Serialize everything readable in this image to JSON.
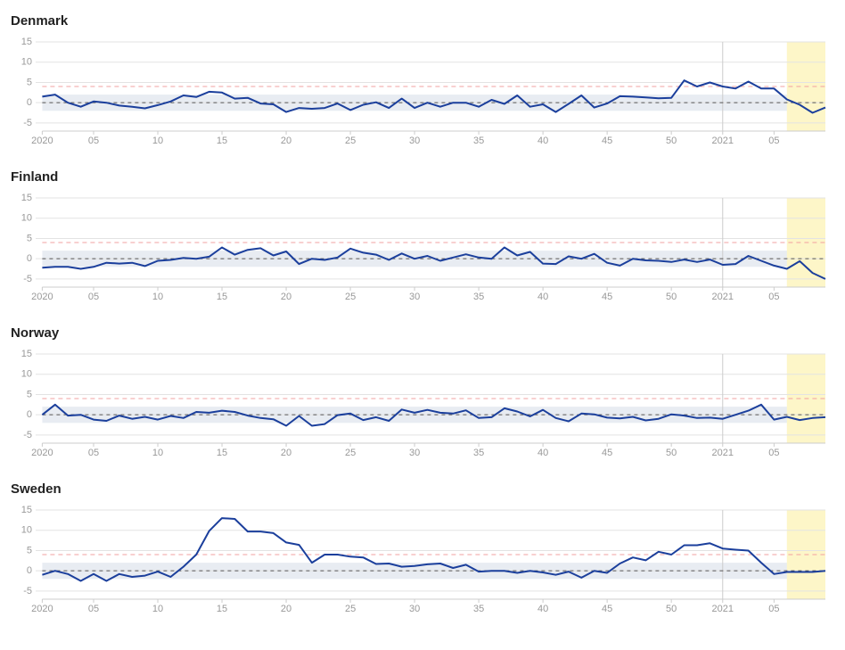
{
  "chart_data": [
    {
      "type": "line",
      "title": "Denmark",
      "categories": [
        "2020",
        null,
        null,
        null,
        "05",
        null,
        null,
        null,
        null,
        "10",
        null,
        null,
        null,
        null,
        "15",
        null,
        null,
        null,
        null,
        "20",
        null,
        null,
        null,
        null,
        "25",
        null,
        null,
        null,
        null,
        "30",
        null,
        null,
        null,
        null,
        "35",
        null,
        null,
        null,
        null,
        "40",
        null,
        null,
        null,
        null,
        "45",
        null,
        null,
        null,
        null,
        "50",
        null,
        null,
        null,
        "2021",
        null,
        null,
        null,
        "05",
        null,
        null,
        null,
        null
      ],
      "series": [
        {
          "color": "#1b3f9c",
          "values": [
            1.5,
            2,
            0,
            -1,
            0.3,
            0,
            -0.7,
            -1,
            -1.4,
            -0.6,
            0.3,
            1.8,
            1.4,
            2.7,
            2.5,
            1,
            1.2,
            -0.2,
            -0.4,
            -2.3,
            -1.3,
            -1.5,
            -1.3,
            -0.2,
            -1.8,
            -0.5,
            0.1,
            -1.3,
            1,
            -1.3,
            0,
            -1,
            0,
            0,
            -1,
            0.7,
            -0.3,
            1.8,
            -1,
            -0.4,
            -2.3,
            -0.3,
            1.8,
            -1.2,
            -0.2,
            1.6,
            1.5,
            1.3,
            1.1,
            1.2,
            5.5,
            4,
            5,
            4,
            3.5,
            5.2,
            3.5,
            3.5,
            0.8,
            -0.5,
            -2.5,
            -1.2
          ]
        }
      ],
      "ylim": [
        -7,
        15
      ],
      "yticks": [
        15,
        10,
        5,
        0,
        -5
      ],
      "grid": true,
      "reference_band": [
        -2,
        2
      ],
      "threshold": 4,
      "baseline": 0,
      "year_divider": 53,
      "highlight": [
        58,
        61
      ]
    },
    {
      "type": "line",
      "title": "Finland",
      "categories": [
        "2020",
        null,
        null,
        null,
        "05",
        null,
        null,
        null,
        null,
        "10",
        null,
        null,
        null,
        null,
        "15",
        null,
        null,
        null,
        null,
        "20",
        null,
        null,
        null,
        null,
        "25",
        null,
        null,
        null,
        null,
        "30",
        null,
        null,
        null,
        null,
        "35",
        null,
        null,
        null,
        null,
        "40",
        null,
        null,
        null,
        null,
        "45",
        null,
        null,
        null,
        null,
        "50",
        null,
        null,
        null,
        "2021",
        null,
        null,
        null,
        "05",
        null,
        null,
        null,
        null
      ],
      "series": [
        {
          "color": "#1b3f9c",
          "values": [
            -2.2,
            -2,
            -2,
            -2.5,
            -2,
            -1,
            -1.2,
            -1,
            -1.8,
            -0.5,
            -0.3,
            0.2,
            0,
            0.5,
            2.8,
            1,
            2.2,
            2.6,
            0.8,
            1.8,
            -1.3,
            0,
            -0.3,
            0.3,
            2.5,
            1.5,
            1,
            -0.3,
            1.3,
            0,
            0.7,
            -0.5,
            0.3,
            1.1,
            0.3,
            0,
            2.8,
            0.8,
            1.7,
            -1.2,
            -1.3,
            0.6,
            0,
            1.2,
            -1,
            -1.7,
            0,
            -0.4,
            -0.5,
            -0.8,
            -0.2,
            -0.8,
            -0.2,
            -1.5,
            -1.3,
            0.7,
            -0.5,
            -1.7,
            -2.5,
            -0.6,
            -3.5,
            -5
          ]
        }
      ],
      "ylim": [
        -7,
        15
      ],
      "yticks": [
        15,
        10,
        5,
        0,
        -5
      ],
      "grid": true,
      "reference_band": [
        -2,
        2
      ],
      "threshold": 4,
      "baseline": 0,
      "year_divider": 53,
      "highlight": [
        58,
        61
      ]
    },
    {
      "type": "line",
      "title": "Norway",
      "categories": [
        "2020",
        null,
        null,
        null,
        "05",
        null,
        null,
        null,
        null,
        "10",
        null,
        null,
        null,
        null,
        "15",
        null,
        null,
        null,
        null,
        "20",
        null,
        null,
        null,
        null,
        "25",
        null,
        null,
        null,
        null,
        "30",
        null,
        null,
        null,
        null,
        "35",
        null,
        null,
        null,
        null,
        "40",
        null,
        null,
        null,
        null,
        "45",
        null,
        null,
        null,
        null,
        "50",
        null,
        null,
        null,
        "2021",
        null,
        null,
        null,
        "05",
        null,
        null,
        null,
        null
      ],
      "series": [
        {
          "color": "#1b3f9c",
          "values": [
            0,
            2.5,
            -0.2,
            0,
            -1.2,
            -1.5,
            -0.2,
            -1,
            -0.5,
            -1.2,
            -0.3,
            -0.8,
            0.7,
            0.5,
            1,
            0.7,
            -0.2,
            -0.8,
            -1.1,
            -2.7,
            -0.3,
            -2.7,
            -2.3,
            -0.1,
            0.3,
            -1.3,
            -0.6,
            -1.5,
            1.3,
            0.5,
            1.2,
            0.5,
            0.3,
            1.1,
            -0.8,
            -0.6,
            1.6,
            0.8,
            -0.4,
            1.2,
            -0.8,
            -1.6,
            0.3,
            0.1,
            -0.7,
            -0.9,
            -0.5,
            -1.4,
            -1,
            0.1,
            -0.2,
            -0.8,
            -0.7,
            -1,
            0,
            1,
            2.5,
            -1.2,
            -0.5,
            -1.3,
            -0.8,
            -0.6
          ]
        }
      ],
      "ylim": [
        -7,
        15
      ],
      "yticks": [
        15,
        10,
        5,
        0,
        -5
      ],
      "grid": true,
      "reference_band": [
        -2,
        2
      ],
      "threshold": 4,
      "baseline": 0,
      "year_divider": 53,
      "highlight": [
        58,
        61
      ]
    },
    {
      "type": "line",
      "title": "Sweden",
      "categories": [
        "2020",
        null,
        null,
        null,
        "05",
        null,
        null,
        null,
        null,
        "10",
        null,
        null,
        null,
        null,
        "15",
        null,
        null,
        null,
        null,
        "20",
        null,
        null,
        null,
        null,
        "25",
        null,
        null,
        null,
        null,
        "30",
        null,
        null,
        null,
        null,
        "35",
        null,
        null,
        null,
        null,
        "40",
        null,
        null,
        null,
        null,
        "45",
        null,
        null,
        null,
        null,
        "50",
        null,
        null,
        null,
        "2021",
        null,
        null,
        null,
        "05",
        null,
        null,
        null,
        null
      ],
      "series": [
        {
          "color": "#1b3f9c",
          "values": [
            -1,
            0,
            -0.8,
            -2.5,
            -0.8,
            -2.5,
            -0.8,
            -1.5,
            -1.2,
            -0.2,
            -1.5,
            1,
            4,
            9.8,
            13,
            12.8,
            9.7,
            9.7,
            9.3,
            7,
            6.4,
            2,
            4,
            4,
            3.5,
            3.3,
            1.7,
            1.8,
            1,
            1.2,
            1.6,
            1.8,
            0.7,
            1.5,
            -0.2,
            0,
            0,
            -0.5,
            0,
            -0.4,
            -1,
            -0.2,
            -1.7,
            0,
            -0.5,
            1.8,
            3.3,
            2.6,
            4.7,
            4,
            6.3,
            6.3,
            6.8,
            5.5,
            5.2,
            5,
            2,
            -0.8,
            -0.3,
            -0.3,
            -0.3,
            0
          ]
        }
      ],
      "ylim": [
        -7,
        15
      ],
      "yticks": [
        15,
        10,
        5,
        0,
        -5
      ],
      "grid": true,
      "reference_band": [
        -2,
        2
      ],
      "threshold": 4,
      "baseline": 0,
      "year_divider": 53,
      "highlight": [
        58,
        61
      ]
    }
  ]
}
